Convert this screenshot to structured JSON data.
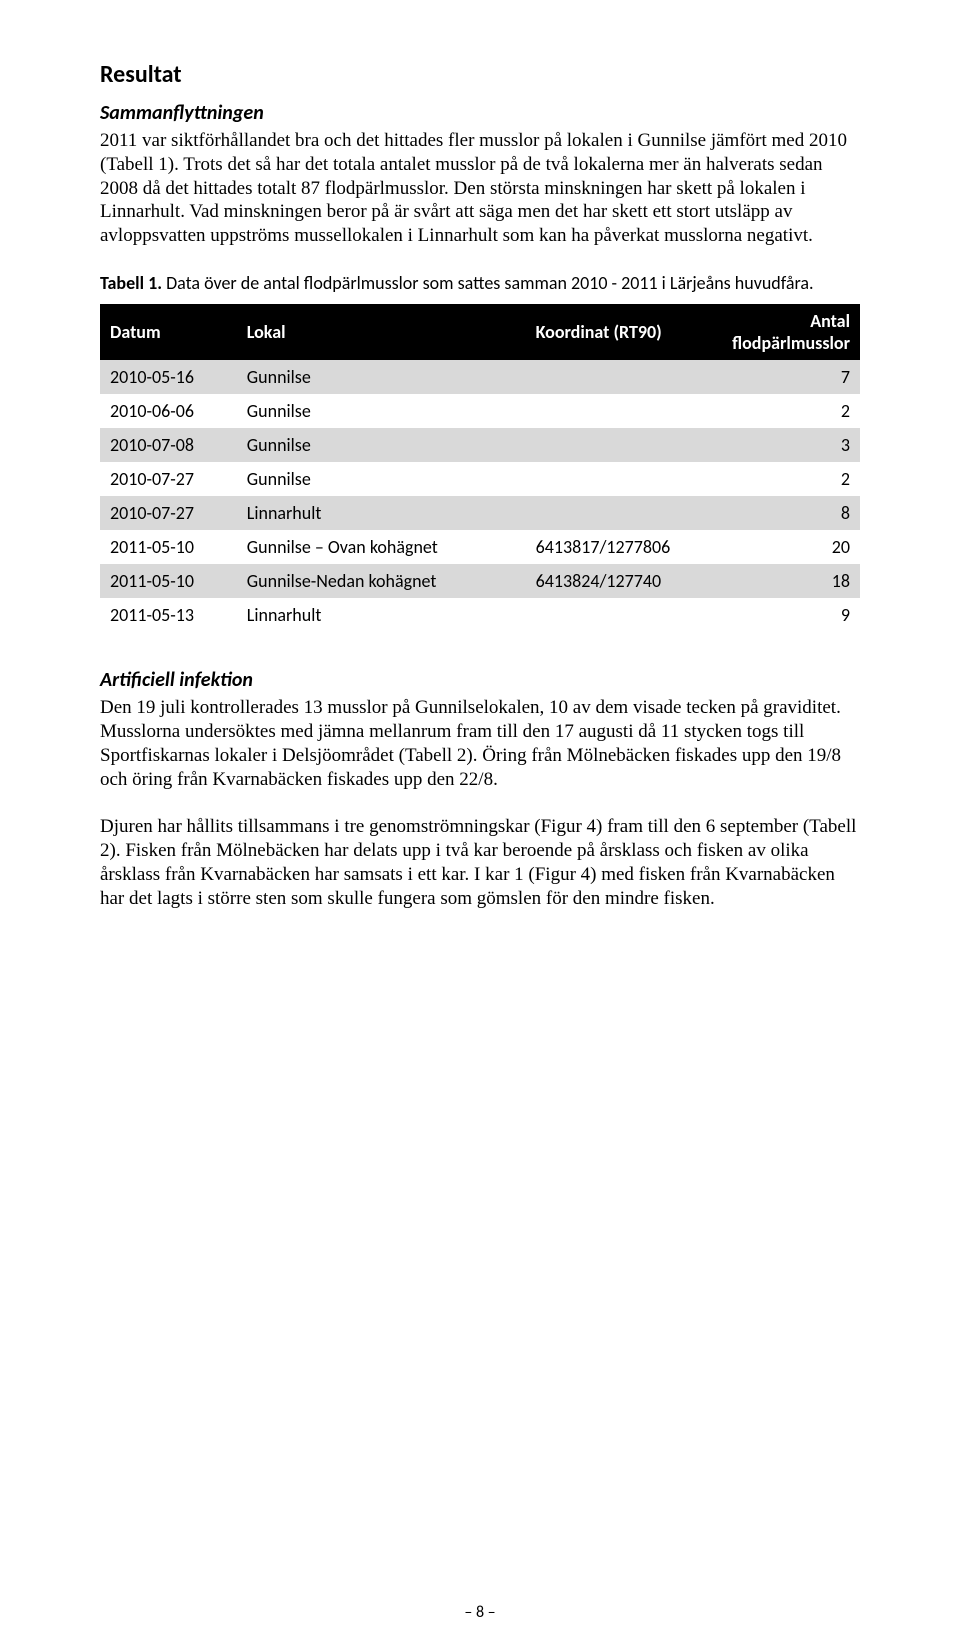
{
  "section_title": "Resultat",
  "subsection1": {
    "title": "Sammanflyttningen",
    "paragraph": "2011 var siktförhållandet bra och det hittades fler musslor på lokalen i Gunnilse jämfört med 2010 (Tabell 1). Trots det så har det totala antalet musslor på de två lokalerna mer än halverats sedan 2008 då det hittades totalt 87 flodpärlmusslor. Den största minskningen har skett på lokalen i Linnarhult. Vad minskningen beror på är svårt att säga men det har skett ett stort utsläpp av avloppsvatten uppströms mussellokalen i Linnarhult som kan ha påverkat musslorna negativt."
  },
  "table1": {
    "caption_label": "Tabell 1.",
    "caption_text": " Data över de antal flodpärlmusslor som sattes samman 2010 - 2011 i Lärjeåns huvudfåra.",
    "columns": [
      "Datum",
      "Lokal",
      "Koordinat (RT90)",
      "Antal flodpärlmusslor"
    ],
    "rows": [
      [
        "2010-05-16",
        "Gunnilse",
        "",
        "7"
      ],
      [
        "2010-06-06",
        "Gunnilse",
        "",
        "2"
      ],
      [
        "2010-07-08",
        "Gunnilse",
        "",
        "3"
      ],
      [
        "2010-07-27",
        "Gunnilse",
        "",
        "2"
      ],
      [
        "2010-07-27",
        "Linnarhult",
        "",
        "8"
      ],
      [
        "2011-05-10",
        "Gunnilse – Ovan kohägnet",
        "6413817/1277806",
        "20"
      ],
      [
        "2011-05-10",
        "Gunnilse-Nedan kohägnet",
        "6413824/127740",
        "18"
      ],
      [
        "2011-05-13",
        "Linnarhult",
        "",
        "9"
      ]
    ],
    "header_bg": "#000000",
    "header_fg": "#ffffff",
    "row_odd_bg": "#d9d9d9",
    "row_even_bg": "#ffffff",
    "col_widths_pct": [
      18,
      38,
      24,
      20
    ],
    "num_cols": [
      3
    ],
    "font_size_pt": 14
  },
  "subsection2": {
    "title": "Artificiell infektion",
    "paragraph1": "Den 19 juli kontrollerades 13 musslor på Gunnilselokalen, 10 av dem visade tecken på graviditet. Musslorna undersöktes med jämna mellanrum fram till den 17 augusti då 11 stycken togs till Sportfiskarnas lokaler i Delsjöområdet (Tabell 2). Öring från Mölnebäcken fiskades upp den 19/8 och öring från Kvarnabäcken fiskades upp den 22/8.",
    "paragraph2": "Djuren har hållits tillsammans i tre genomströmningskar (Figur 4) fram till den 6 september (Tabell 2). Fisken från Mölnebäcken har delats upp i två kar beroende på årsklass och fisken av olika årsklass från Kvarnabäcken har samsats i ett kar. I kar 1 (Figur 4) med fisken från Kvarnabäcken har det lagts i större sten som skulle fungera som gömslen för den mindre fisken."
  },
  "page_number": "– 8 –"
}
